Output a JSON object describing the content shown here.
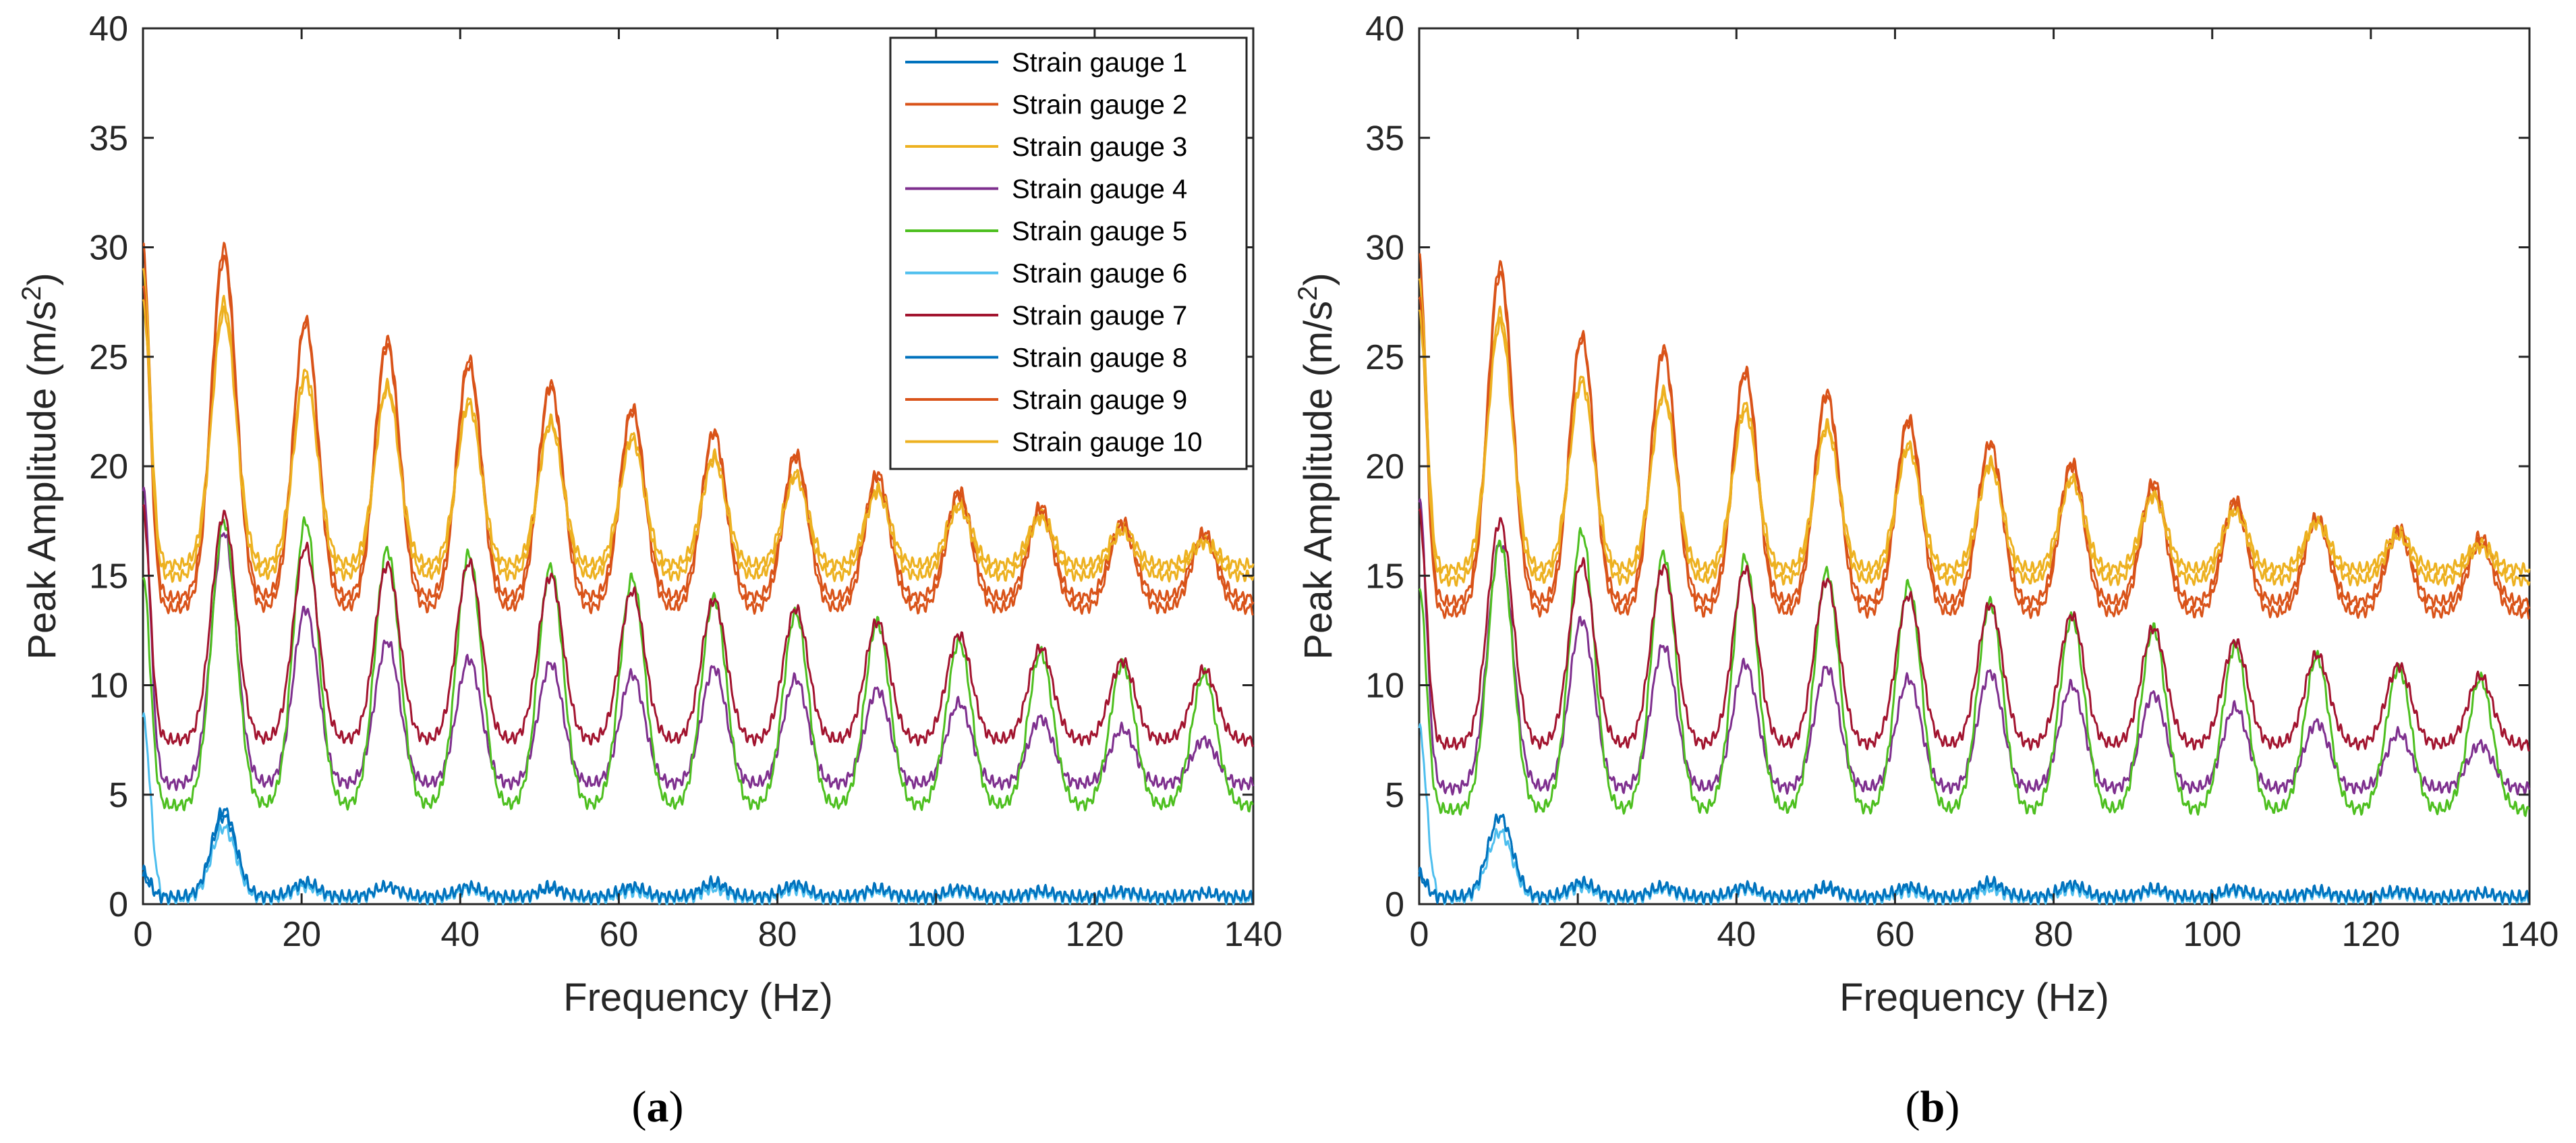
{
  "chart_data": [
    {
      "type": "line",
      "panel_label": "a",
      "xlabel": "Frequency (Hz)",
      "ylabel": "Peak Amplitude (m/s",
      "ylabel_superscript": "2",
      "ylabel_suffix": ")",
      "xlim": [
        0,
        140
      ],
      "ylim": [
        0,
        40
      ],
      "xticks": [
        0,
        20,
        40,
        60,
        80,
        100,
        120,
        140
      ],
      "yticks": [
        0,
        5,
        10,
        15,
        20,
        25,
        30,
        35,
        40
      ],
      "grid": false,
      "legend_position": "top-right",
      "peak_frequencies_hz": [
        0,
        10.2,
        20.5,
        30.8,
        41.1,
        51.4,
        61.7,
        72.0,
        82.3,
        92.6,
        102.9,
        113.2,
        123.5,
        133.8
      ],
      "series": [
        {
          "name": "Strain gauge 1",
          "color": "#0072BD",
          "base": 0.3,
          "peaks": [
            1.5,
            4.0,
            0.9,
            0.8,
            0.7,
            0.8,
            0.7,
            0.9,
            0.8,
            0.7,
            0.6,
            0.6,
            0.5,
            0.5
          ]
        },
        {
          "name": "Strain gauge 2",
          "color": "#D95319",
          "base": 14.0,
          "peaks": [
            30.0,
            30.0,
            26.7,
            25.8,
            24.9,
            23.8,
            22.7,
            21.6,
            20.6,
            19.7,
            18.9,
            18.2,
            17.5,
            17.0
          ]
        },
        {
          "name": "Strain gauge 3",
          "color": "#EDB120",
          "base": 15.5,
          "peaks": [
            29.0,
            27.5,
            24.3,
            23.7,
            23.0,
            22.1,
            21.4,
            20.5,
            19.7,
            19.0,
            18.3,
            17.8,
            17.2,
            16.6
          ]
        },
        {
          "name": "Strain gauge 4",
          "color": "#7E2F8E",
          "base": 5.5,
          "peaks": [
            19.0,
            17.0,
            13.5,
            12.0,
            11.2,
            11.0,
            10.5,
            10.8,
            10.3,
            9.8,
            9.2,
            8.5,
            8.0,
            7.5
          ]
        },
        {
          "name": "Strain gauge 5",
          "color": "#4DBF1F",
          "base": 4.5,
          "peaks": [
            15.0,
            17.5,
            17.5,
            16.2,
            16.0,
            15.4,
            14.9,
            14.0,
            13.3,
            12.9,
            12.0,
            11.5,
            11.0,
            10.5
          ]
        },
        {
          "name": "Strain gauge 6",
          "color": "#4DBEEE",
          "base": 0.25,
          "peaks": [
            8.5,
            3.5,
            0.8,
            0.8,
            0.7,
            0.7,
            0.6,
            0.7,
            0.7,
            0.6,
            0.6,
            0.5,
            0.5,
            0.5
          ]
        },
        {
          "name": "Strain gauge 7",
          "color": "#A2142F",
          "base": 7.5,
          "peaks": [
            18.0,
            17.8,
            16.3,
            15.5,
            15.6,
            15.0,
            14.3,
            13.9,
            13.5,
            12.9,
            12.3,
            11.7,
            11.1,
            10.7
          ]
        },
        {
          "name": "Strain gauge 8",
          "color": "#0072BD",
          "base": 0.35,
          "peaks": [
            1.2,
            4.3,
            1.0,
            0.8,
            0.8,
            0.7,
            0.8,
            1.0,
            0.9,
            0.7,
            0.7,
            0.6,
            0.6,
            0.5
          ]
        },
        {
          "name": "Strain gauge 9",
          "color": "#D95319",
          "base": 13.5,
          "peaks": [
            28.0,
            29.5,
            26.5,
            25.5,
            24.6,
            23.6,
            22.5,
            21.5,
            20.4,
            19.5,
            18.7,
            18.0,
            17.3,
            16.8
          ]
        },
        {
          "name": "Strain gauge 10",
          "color": "#EDB120",
          "base": 15.0,
          "peaks": [
            27.5,
            27.0,
            24.0,
            23.5,
            22.8,
            21.9,
            21.2,
            20.3,
            19.5,
            18.8,
            18.1,
            17.6,
            17.0,
            16.5
          ]
        }
      ]
    },
    {
      "type": "line",
      "panel_label": "b",
      "xlabel": "Frequency (Hz)",
      "ylabel": "Peak Amplitude (m/s",
      "ylabel_superscript": "2",
      "ylabel_suffix": ")",
      "xlim": [
        0,
        140
      ],
      "ylim": [
        0,
        40
      ],
      "xticks": [
        0,
        20,
        40,
        60,
        80,
        100,
        120,
        140
      ],
      "yticks": [
        0,
        5,
        10,
        15,
        20,
        25,
        30,
        35,
        40
      ],
      "grid": false,
      "legend_position": "none",
      "peak_frequencies_hz": [
        0,
        10.2,
        20.5,
        30.8,
        41.1,
        51.4,
        61.7,
        72.0,
        82.3,
        92.6,
        102.9,
        113.2,
        123.5,
        133.8
      ],
      "series": [
        {
          "name": "Strain gauge 1",
          "color": "#0072BD",
          "base": 0.3,
          "peaks": [
            1.4,
            4.0,
            0.9,
            0.8,
            0.7,
            0.8,
            0.7,
            0.9,
            0.8,
            0.7,
            0.6,
            0.6,
            0.5,
            0.5
          ]
        },
        {
          "name": "Strain gauge 2",
          "color": "#D95319",
          "base": 13.8,
          "peaks": [
            29.5,
            29.2,
            26.0,
            25.4,
            24.4,
            23.4,
            22.2,
            21.1,
            20.2,
            19.3,
            18.5,
            17.7,
            17.2,
            16.8
          ]
        },
        {
          "name": "Strain gauge 3",
          "color": "#EDB120",
          "base": 15.3,
          "peaks": [
            28.5,
            27.0,
            24.0,
            23.4,
            22.8,
            21.9,
            21.0,
            20.2,
            19.5,
            18.8,
            18.1,
            17.5,
            17.0,
            16.5
          ]
        },
        {
          "name": "Strain gauge 4",
          "color": "#7E2F8E",
          "base": 5.3,
          "peaks": [
            18.5,
            16.5,
            13.0,
            11.8,
            11.0,
            10.8,
            10.3,
            10.6,
            10.0,
            9.6,
            9.0,
            8.3,
            7.8,
            7.3
          ]
        },
        {
          "name": "Strain gauge 5",
          "color": "#4DBF1F",
          "base": 4.3,
          "peaks": [
            14.5,
            16.5,
            17.0,
            16.0,
            15.8,
            15.2,
            14.6,
            13.8,
            13.1,
            12.6,
            11.8,
            11.3,
            10.8,
            10.3
          ]
        },
        {
          "name": "Strain gauge 6",
          "color": "#4DBEEE",
          "base": 0.25,
          "peaks": [
            8.0,
            3.3,
            0.8,
            0.7,
            0.7,
            0.7,
            0.6,
            0.7,
            0.7,
            0.6,
            0.6,
            0.5,
            0.5,
            0.5
          ]
        },
        {
          "name": "Strain gauge 7",
          "color": "#A2142F",
          "base": 7.3,
          "peaks": [
            17.8,
            17.5,
            15.6,
            15.4,
            15.3,
            14.8,
            14.1,
            13.7,
            13.2,
            12.6,
            12.0,
            11.4,
            10.9,
            10.4
          ]
        },
        {
          "name": "Strain gauge 8",
          "color": "#0072BD",
          "base": 0.35,
          "peaks": [
            1.2,
            4.0,
            1.0,
            0.8,
            0.8,
            0.7,
            0.8,
            1.0,
            0.9,
            0.7,
            0.7,
            0.6,
            0.6,
            0.5
          ]
        },
        {
          "name": "Strain gauge 9",
          "color": "#D95319",
          "base": 13.3,
          "peaks": [
            27.5,
            28.8,
            25.8,
            25.2,
            24.2,
            23.2,
            22.0,
            21.0,
            20.0,
            19.1,
            18.3,
            17.6,
            17.0,
            16.5
          ]
        },
        {
          "name": "Strain gauge 10",
          "color": "#EDB120",
          "base": 14.8,
          "peaks": [
            27.0,
            26.5,
            23.8,
            23.2,
            22.5,
            21.7,
            20.8,
            20.0,
            19.3,
            18.6,
            17.9,
            17.4,
            16.8,
            16.3
          ]
        }
      ]
    }
  ]
}
